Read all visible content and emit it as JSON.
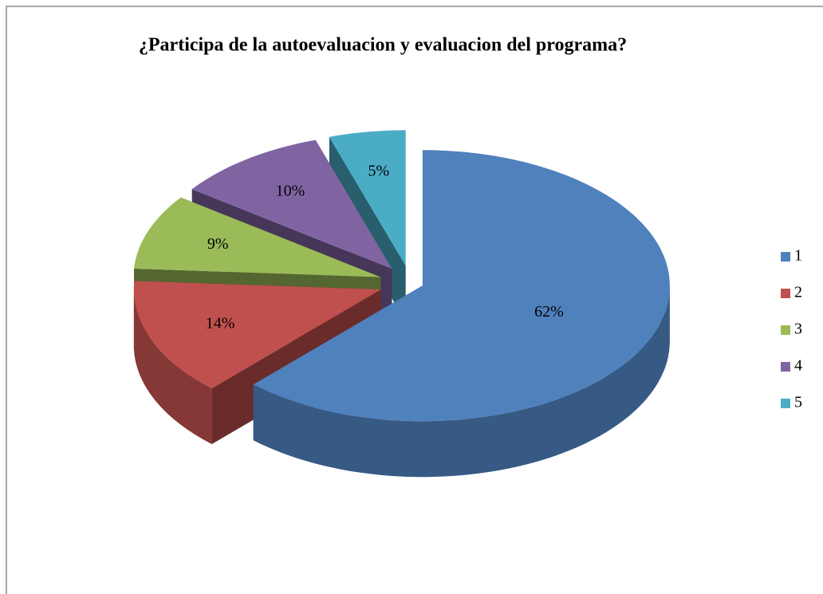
{
  "chart_data": {
    "type": "pie3d",
    "title": "¿Participa de la autoevaluacion y evaluacion del programa?",
    "categories": [
      "1",
      "2",
      "3",
      "4",
      "5"
    ],
    "values": [
      62,
      14,
      9,
      10,
      5
    ],
    "value_labels": [
      "62%",
      "14%",
      "9%",
      "10%",
      "5%"
    ],
    "colors": [
      "#4f81bd",
      "#c0504d",
      "#9bbb59",
      "#8064a2",
      "#4bacc6"
    ],
    "legend": "right"
  }
}
